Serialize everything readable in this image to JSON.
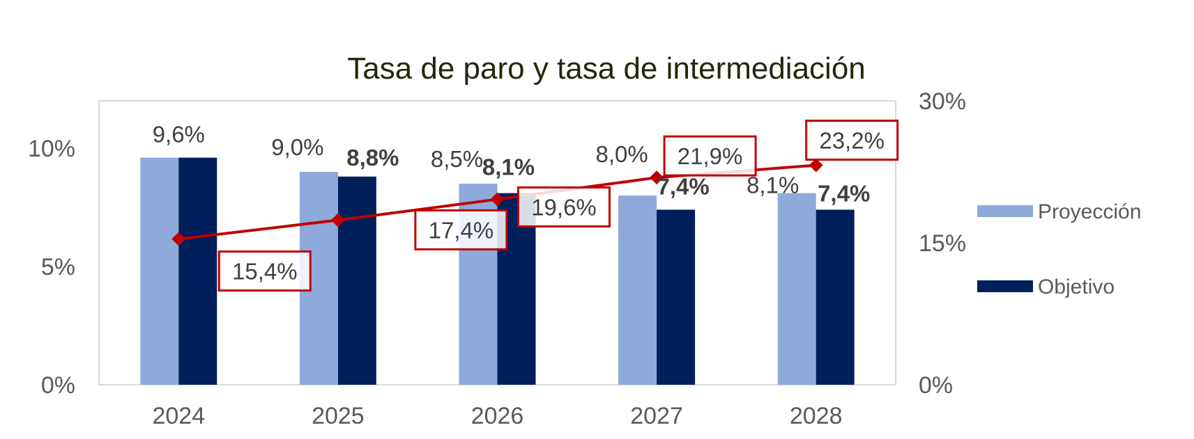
{
  "chart_data": {
    "type": "bar",
    "title": "Tasa de paro y tasa de intermediación",
    "categories": [
      "2024",
      "2025",
      "2026",
      "2027",
      "2028"
    ],
    "series": [
      {
        "name": "Proyección",
        "axis": "left",
        "values": [
          9.6,
          9.0,
          8.5,
          8.0,
          8.1
        ],
        "labels": [
          "9,6%",
          "9,0%",
          "8,5%",
          "8,0%",
          "8,1%"
        ]
      },
      {
        "name": "Objetivo",
        "axis": "left",
        "values": [
          9.6,
          8.8,
          8.1,
          7.4,
          7.4
        ],
        "labels": [
          "",
          "8,8%",
          "8,1%",
          "7,4%",
          "7,4%"
        ]
      }
    ],
    "line_series": {
      "type": "line",
      "axis": "right",
      "values": [
        15.4,
        17.4,
        19.6,
        21.9,
        23.2
      ],
      "labels": [
        "15,4%",
        "17,4%",
        "19,6%",
        "21,9%",
        "23,2%"
      ]
    },
    "y_left": {
      "ylim": [
        0,
        12
      ],
      "ticks": [
        0,
        5,
        10
      ],
      "tick_labels": [
        "0%",
        "5%",
        "10%"
      ]
    },
    "y_right": {
      "ylim": [
        0,
        30
      ],
      "ticks": [
        0,
        15,
        30
      ],
      "tick_labels": [
        "0%",
        "15%",
        "30%"
      ]
    },
    "grid": false,
    "legend_position": "right",
    "colors": {
      "Proyección": "#8eaadb",
      "Objetivo": "#001f5b",
      "line": "#c00000",
      "label_box": "#c00000",
      "plot_border": "#d9d9d9"
    }
  }
}
